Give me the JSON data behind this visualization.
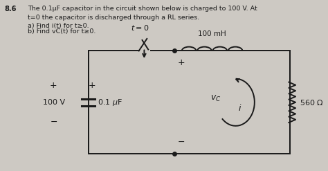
{
  "bg_color": "#cdc9c3",
  "text_color": "#1a1a1a",
  "problem_number": "8.6",
  "problem_text_line1": "The 0.1μF capacitor in the circuit shown below is charged to 100 V. At",
  "problem_text_line2": "t=0 the capacitor is discharged through a RL series.",
  "problem_text_line3": "a) Find i(t) for t≥0.",
  "problem_text_line4": "b) Find vC(t) for t≥0.",
  "line_color": "#1a1a1a"
}
